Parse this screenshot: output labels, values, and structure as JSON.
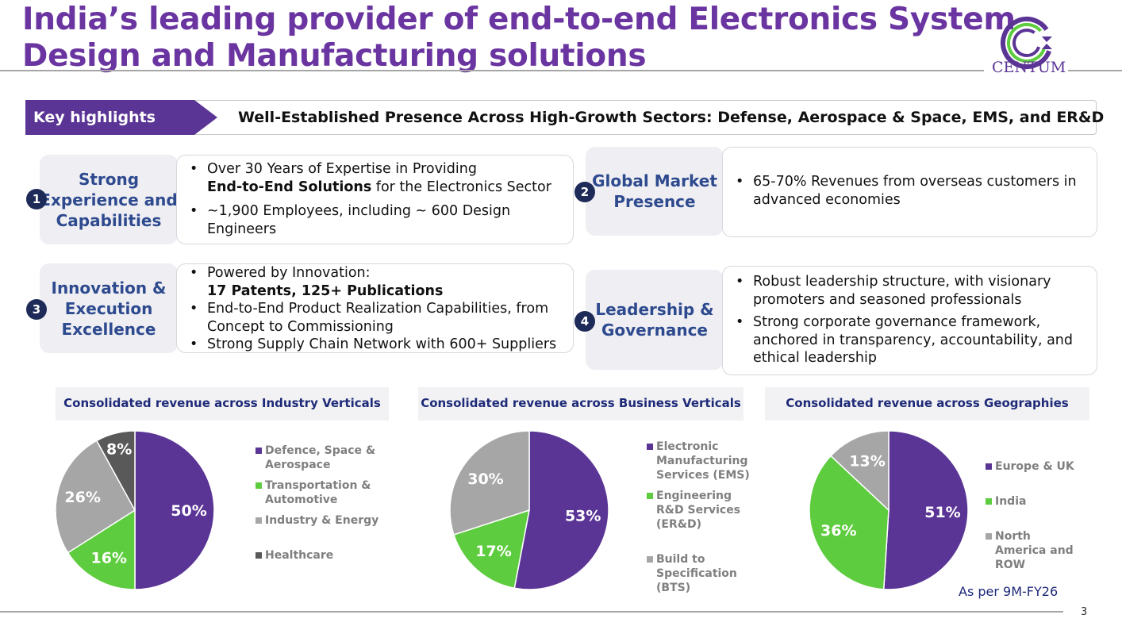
{
  "title": {
    "line1": "India’s leading provider of end-to-end Electronics System",
    "line2": "Design and Manufacturing solutions"
  },
  "logo": {
    "text": "CENTUM"
  },
  "banner": {
    "label": "Key highlights",
    "text": "Well-Established Presence Across High-Growth Sectors: Defense, Aerospace & Space, EMS, and ER&D"
  },
  "highlights": [
    {
      "num": "1",
      "label": "Strong Experience and Capabilities",
      "b1a": "Over 30 Years of Expertise in Providing",
      "b1b": "End-to-End Solutions",
      "b1c": " for the Electronics Sector",
      "b2": "~1,900 Employees, including ~ 600 Design Engineers"
    },
    {
      "num": "2",
      "label": "Global Market Presence",
      "b1": "65-70% Revenues from overseas customers in advanced economies"
    },
    {
      "num": "3",
      "label": "Innovation & Execution Excellence",
      "b1": "Powered by Innovation:",
      "b1b": "17 Patents, 125+ Publications",
      "b2": "End-to-End Product Realization Capabilities, from Concept to Commissioning",
      "b3": "Strong Supply Chain Network with 600+ Suppliers"
    },
    {
      "num": "4",
      "label": "Leadership & Governance",
      "b1": "Robust leadership structure, with visionary promoters and seasoned professionals",
      "b2": "Strong corporate governance framework, anchored in transparency, accountability, and ethical leadership"
    }
  ],
  "chart_data": [
    {
      "type": "pie",
      "title": "Consolidated revenue  across Industry Verticals",
      "labels": [
        "Defence, Space & Aerospace",
        "Transportation & Automotive",
        "Industry & Energy",
        "Healthcare"
      ],
      "values": [
        50,
        16,
        26,
        8
      ],
      "data_labels": [
        "50%",
        "16%",
        "26%",
        "8%"
      ],
      "colors": [
        "#5b3595",
        "#5ecc3f",
        "#a6a6a6",
        "#595959"
      ]
    },
    {
      "type": "pie",
      "title": "Consolidated revenue   across Business Verticals",
      "labels": [
        "Electronic Manufacturing Services (EMS)",
        "Engineering R&D Services (ER&D)",
        "Build to Specification (BTS)"
      ],
      "values": [
        53,
        17,
        30
      ],
      "data_labels": [
        "53%",
        "17%",
        "30%"
      ],
      "colors": [
        "#5b3595",
        "#5ecc3f",
        "#a6a6a6"
      ]
    },
    {
      "type": "pie",
      "title": "Consolidated revenue across Geographies",
      "labels": [
        "Europe & UK",
        "India",
        "North America and ROW"
      ],
      "values": [
        51,
        36,
        13
      ],
      "data_labels": [
        "51%",
        "36%",
        "13%"
      ],
      "colors": [
        "#5b3595",
        "#5ecc3f",
        "#a6a6a6"
      ]
    }
  ],
  "footnote": "As per 9M-FY26",
  "page_number": "3"
}
